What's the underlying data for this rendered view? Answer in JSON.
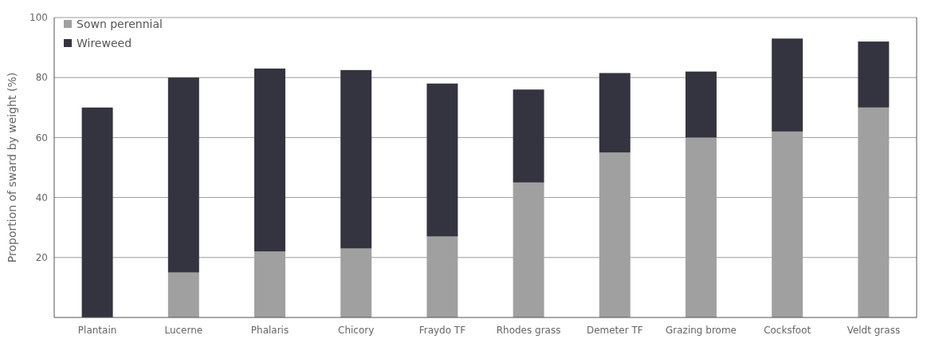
{
  "chart_data": {
    "type": "bar",
    "stacked": true,
    "ylabel": "Proportion of sward by weight (%)",
    "categories": [
      "Plantain",
      "Lucerne",
      "Phalaris",
      "Chicory",
      "Fraydo TF",
      "Rhodes grass",
      "Demeter TF",
      "Grazing brome",
      "Cocksfoot",
      "Veldt grass"
    ],
    "series": [
      {
        "name": "Sown perennial",
        "color": "#a0a0a0",
        "values": [
          0,
          15,
          22,
          23,
          27,
          45,
          55,
          60,
          62,
          70
        ]
      },
      {
        "name": "Wireweed",
        "color": "#33343f",
        "values": [
          70,
          65,
          61,
          59.5,
          51,
          31,
          26.5,
          22,
          31,
          22
        ]
      }
    ],
    "ylim": [
      0,
      100
    ],
    "yticks": [
      20,
      40,
      60,
      80,
      100
    ],
    "grid": "y",
    "legend": "top left"
  }
}
